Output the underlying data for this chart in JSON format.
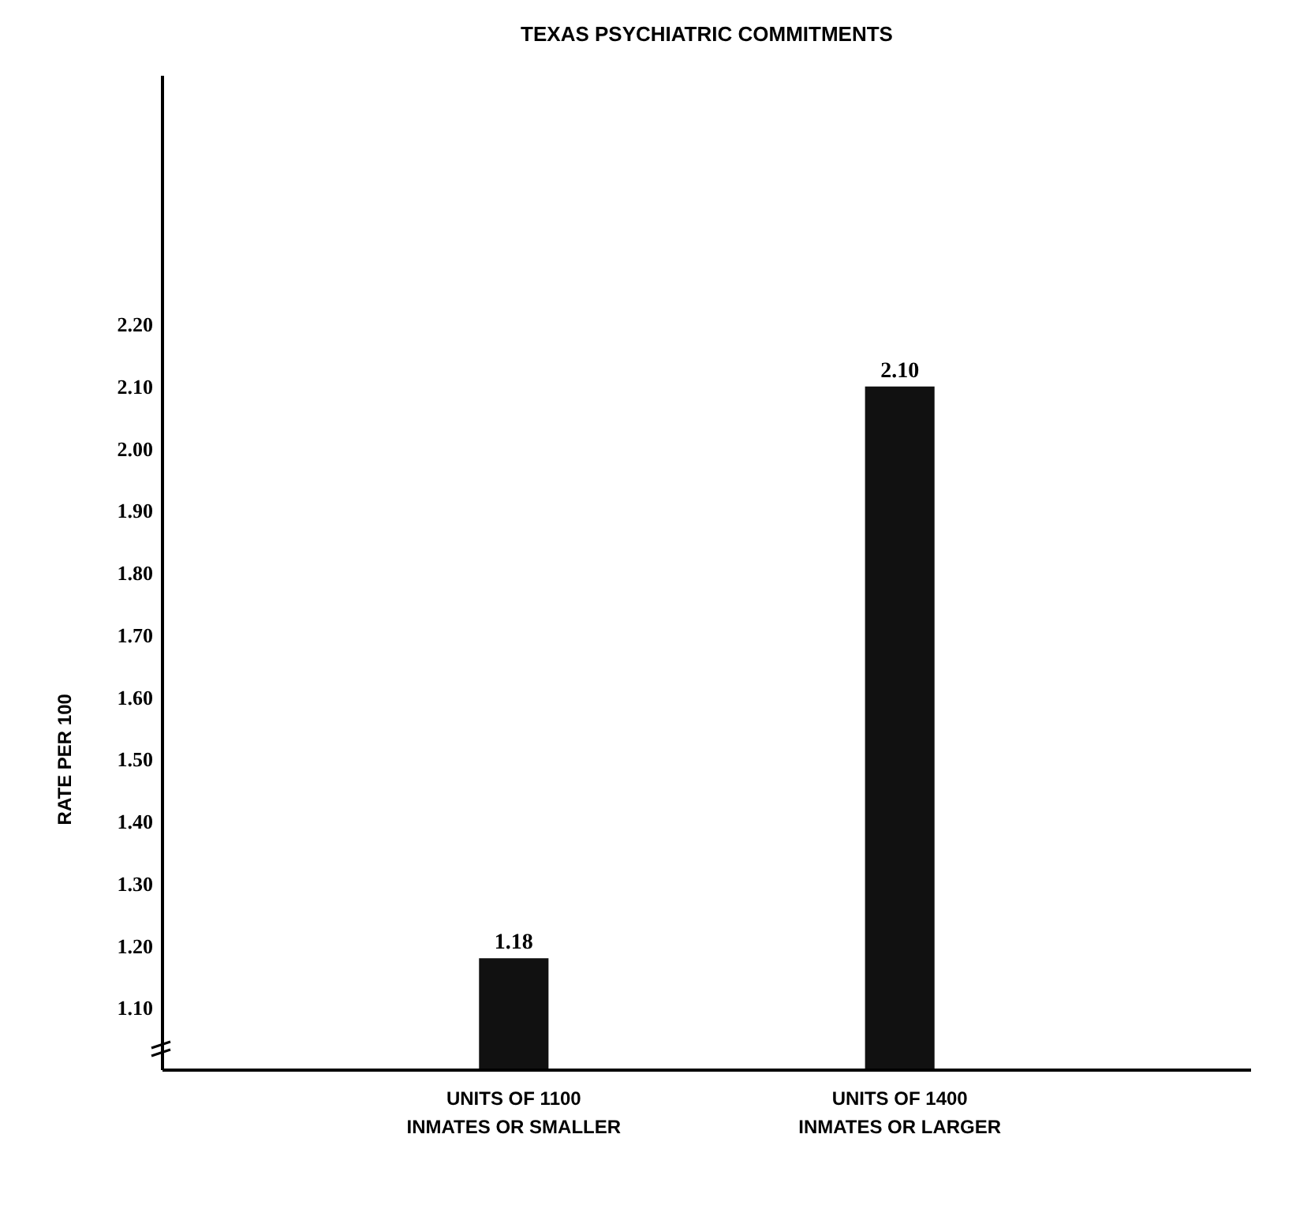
{
  "chart_data": {
    "type": "bar",
    "title": "TEXAS PSYCHIATRIC COMMITMENTS",
    "ylabel": "RATE PER 100",
    "categories": [
      "UNITS OF 1100\nINMATES OR SMALLER",
      "UNITS OF 1400\nINMATES OR LARGER"
    ],
    "values": [
      1.18,
      2.1
    ],
    "value_labels": [
      "1.18",
      "2.10"
    ],
    "color": "#111111",
    "ylim": [
      1.0,
      2.6
    ],
    "yticks": [
      {
        "value": 1.1,
        "label": "1.10"
      },
      {
        "value": 1.2,
        "label": "1.20"
      },
      {
        "value": 1.3,
        "label": "1.30"
      },
      {
        "value": 1.4,
        "label": "1.40"
      },
      {
        "value": 1.5,
        "label": "1.50"
      },
      {
        "value": 1.6,
        "label": "1.60"
      },
      {
        "value": 1.7,
        "label": "1.70"
      },
      {
        "value": 1.8,
        "label": "1.80"
      },
      {
        "value": 1.9,
        "label": "1.90"
      },
      {
        "value": 2.0,
        "label": "2.00"
      },
      {
        "value": 2.1,
        "label": "2.10"
      },
      {
        "value": 2.2,
        "label": "2.20"
      }
    ],
    "grid": false
  }
}
